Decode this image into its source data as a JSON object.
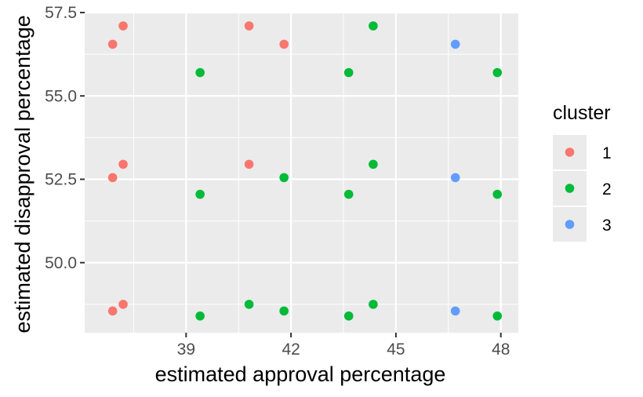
{
  "chart_data": {
    "type": "scatter",
    "xlabel": "estimated approval percentage",
    "ylabel": "estimated disapproval percentage",
    "xlim": [
      36.1,
      48.5
    ],
    "ylim": [
      47.9,
      57.5
    ],
    "x_ticks": [
      {
        "value": 39,
        "label": "39"
      },
      {
        "value": 42,
        "label": "42"
      },
      {
        "value": 45,
        "label": "45"
      },
      {
        "value": 48,
        "label": "48"
      }
    ],
    "y_ticks": [
      {
        "value": 50.0,
        "label": "50.0"
      },
      {
        "value": 52.5,
        "label": "52.5"
      },
      {
        "value": 55.0,
        "label": "55.0"
      },
      {
        "value": 57.5,
        "label": "57.5"
      }
    ],
    "grid": true,
    "legend": {
      "title": "cluster",
      "placement": "right"
    },
    "series": [
      {
        "name": "1",
        "color": "#F8766D",
        "points": [
          {
            "x": 36.9,
            "y": 56.55
          },
          {
            "x": 37.2,
            "y": 57.1
          },
          {
            "x": 36.9,
            "y": 52.55
          },
          {
            "x": 37.2,
            "y": 52.95
          },
          {
            "x": 36.9,
            "y": 48.55
          },
          {
            "x": 37.2,
            "y": 48.75
          },
          {
            "x": 40.8,
            "y": 57.1
          },
          {
            "x": 41.8,
            "y": 56.55
          },
          {
            "x": 40.8,
            "y": 52.95
          }
        ]
      },
      {
        "name": "2",
        "color": "#00BA38",
        "points": [
          {
            "x": 44.35,
            "y": 57.1
          },
          {
            "x": 39.4,
            "y": 55.7
          },
          {
            "x": 43.65,
            "y": 55.7
          },
          {
            "x": 47.9,
            "y": 55.7
          },
          {
            "x": 39.4,
            "y": 52.05
          },
          {
            "x": 41.8,
            "y": 52.55
          },
          {
            "x": 43.65,
            "y": 52.05
          },
          {
            "x": 44.35,
            "y": 52.95
          },
          {
            "x": 47.9,
            "y": 52.05
          },
          {
            "x": 39.4,
            "y": 48.4
          },
          {
            "x": 40.8,
            "y": 48.75
          },
          {
            "x": 41.8,
            "y": 48.55
          },
          {
            "x": 43.65,
            "y": 48.4
          },
          {
            "x": 44.35,
            "y": 48.75
          },
          {
            "x": 47.9,
            "y": 48.4
          }
        ]
      },
      {
        "name": "3",
        "color": "#619CFF",
        "points": [
          {
            "x": 46.7,
            "y": 56.55
          },
          {
            "x": 46.7,
            "y": 52.55
          },
          {
            "x": 46.7,
            "y": 48.55
          }
        ]
      }
    ]
  }
}
